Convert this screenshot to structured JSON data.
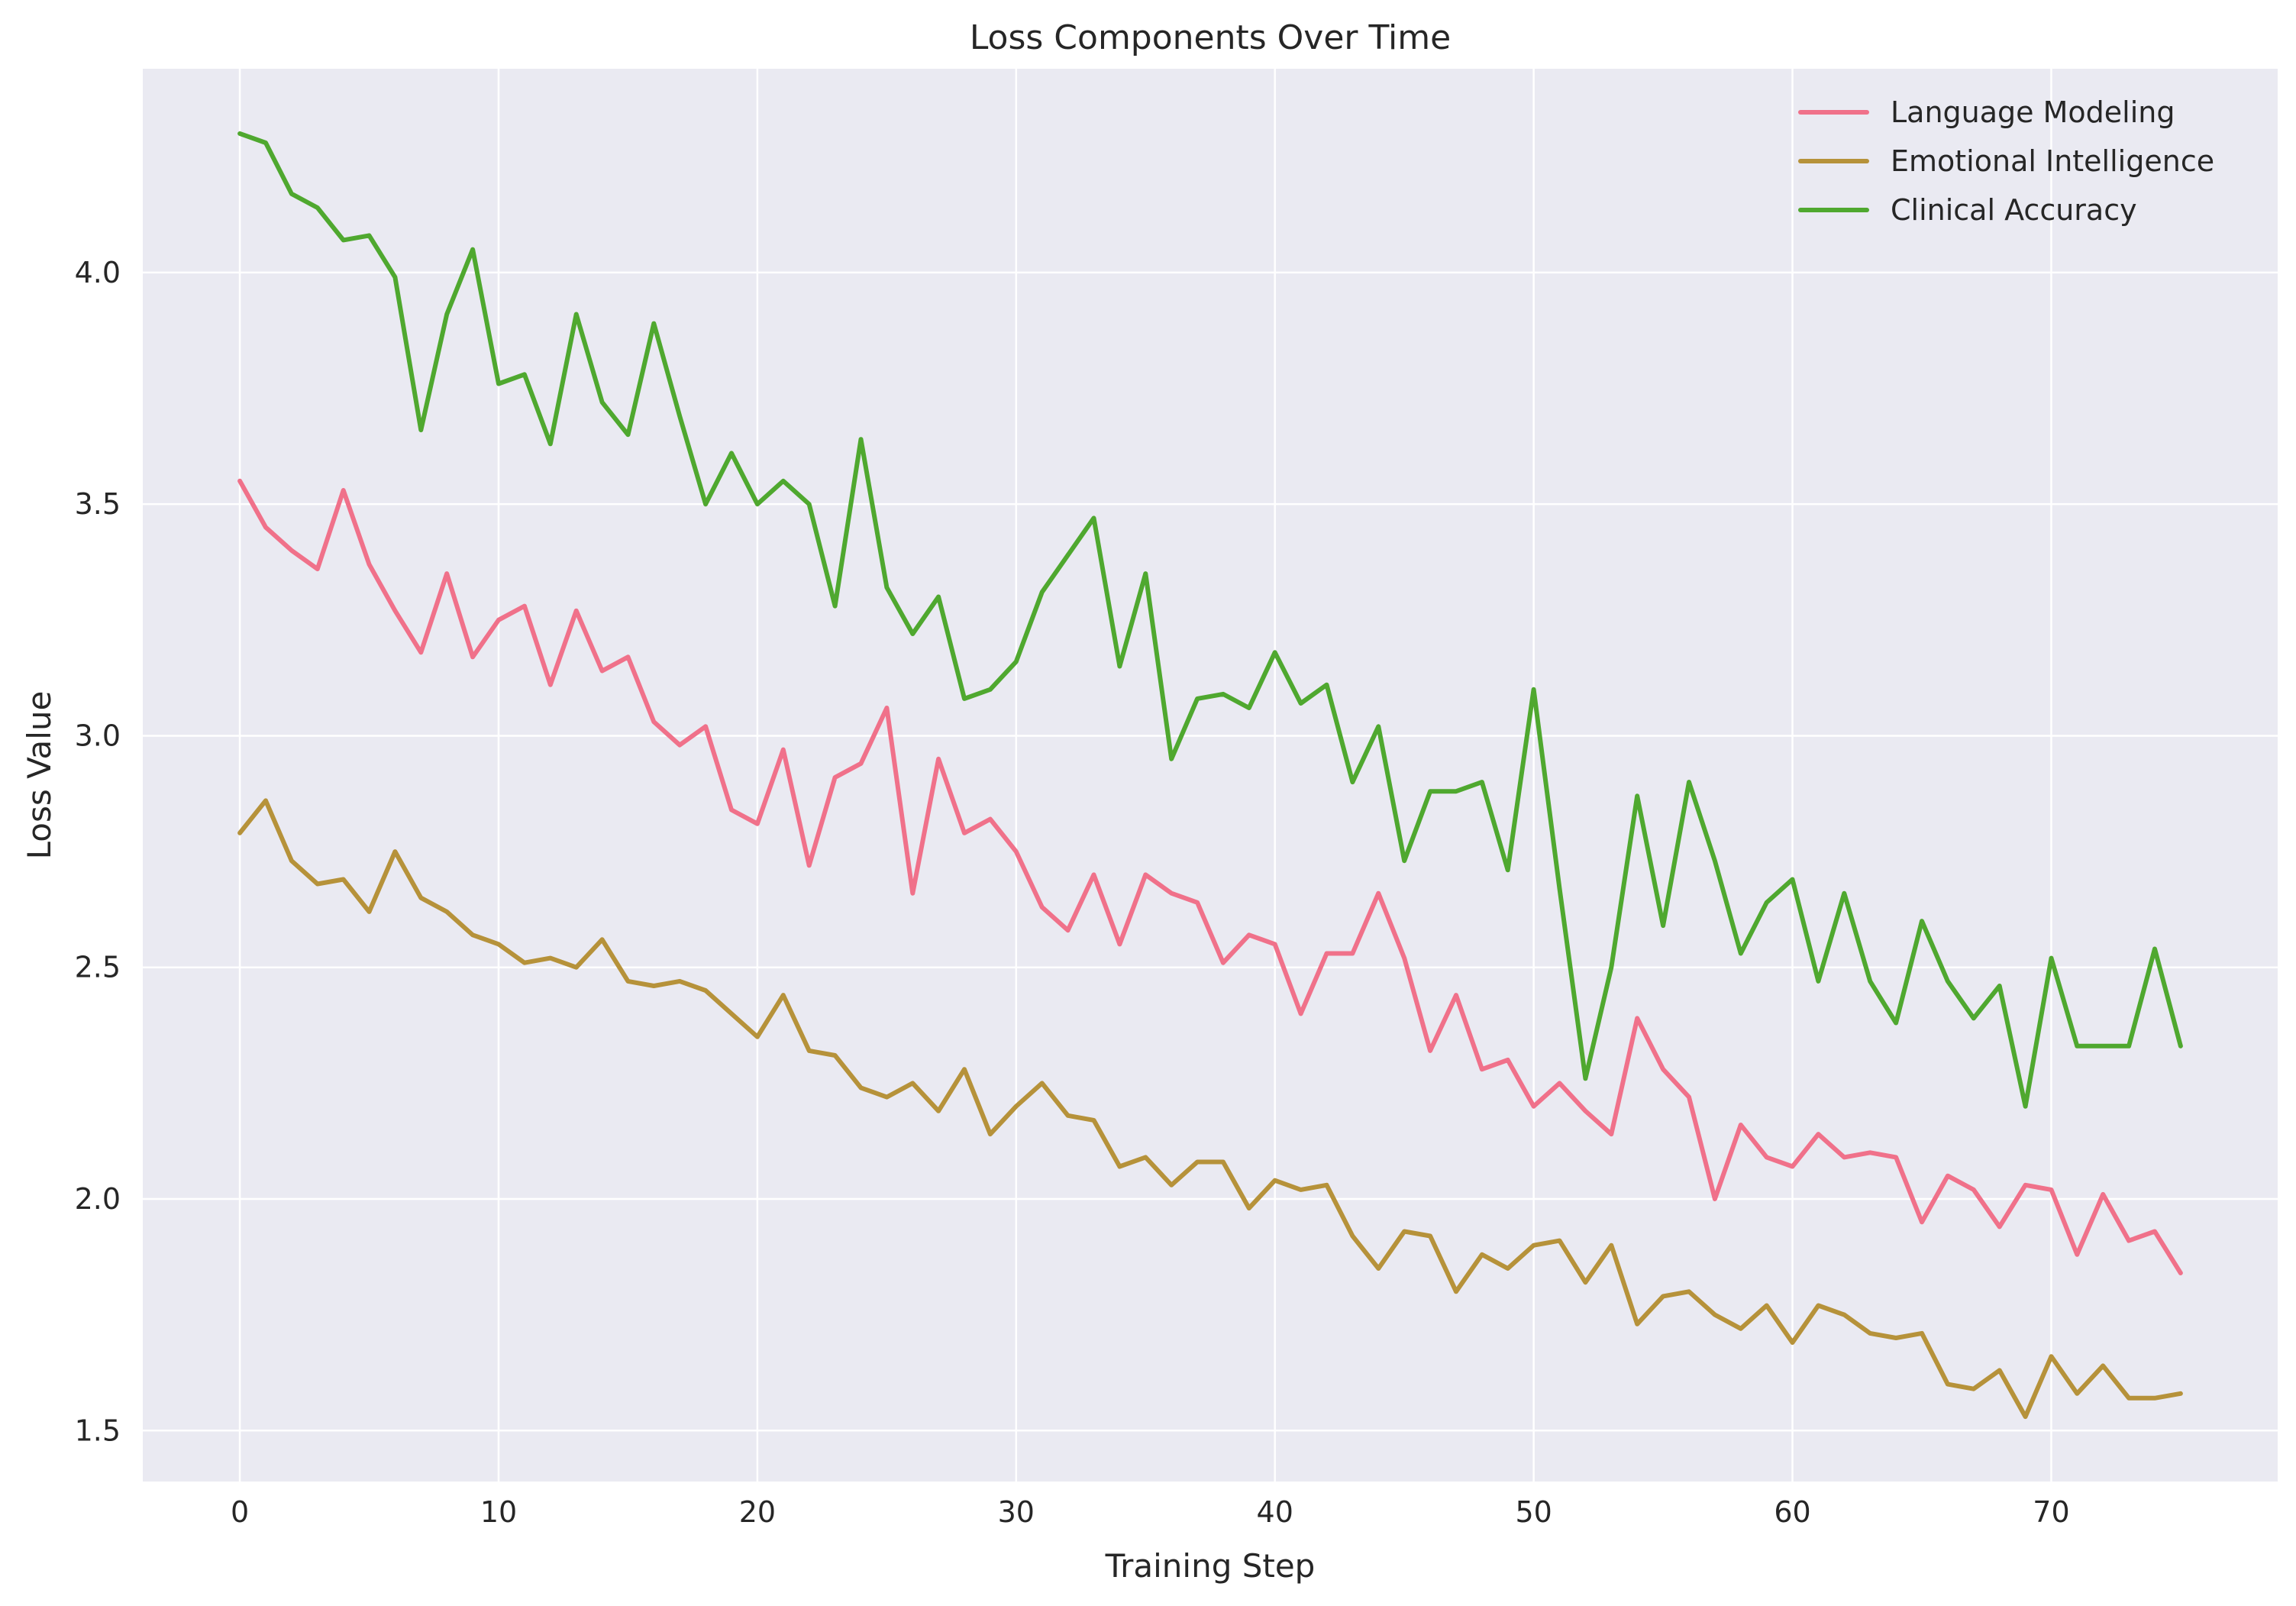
{
  "chart_data": {
    "type": "line",
    "title": "Loss Components Over Time",
    "xlabel": "Training Step",
    "ylabel": "Loss Value",
    "xlim": [
      -3.75,
      78.75
    ],
    "ylim": [
      1.39,
      4.44
    ],
    "xticks": [
      0,
      10,
      20,
      30,
      40,
      50,
      60,
      70
    ],
    "yticks": [
      1.5,
      2.0,
      2.5,
      3.0,
      3.5,
      4.0
    ],
    "x_tick_labels": [
      "0",
      "10",
      "20",
      "30",
      "40",
      "50",
      "60",
      "70"
    ],
    "y_tick_labels": [
      "1.5",
      "2.0",
      "2.5",
      "3.0",
      "3.5",
      "4.0"
    ],
    "grid": true,
    "legend_position": "top-right",
    "x": [
      0,
      1,
      2,
      3,
      4,
      5,
      6,
      7,
      8,
      9,
      10,
      11,
      12,
      13,
      14,
      15,
      16,
      17,
      18,
      19,
      20,
      21,
      22,
      23,
      24,
      25,
      26,
      27,
      28,
      29,
      30,
      31,
      32,
      33,
      34,
      35,
      36,
      37,
      38,
      39,
      40,
      41,
      42,
      43,
      44,
      45,
      46,
      47,
      48,
      49,
      50,
      51,
      52,
      53,
      54,
      55,
      56,
      57,
      58,
      59,
      60,
      61,
      62,
      63,
      64,
      65,
      66,
      67,
      68,
      69,
      70,
      71,
      72,
      73,
      74,
      75
    ],
    "series": [
      {
        "name": "Language Modeling",
        "color": "#f0718a",
        "values": [
          3.55,
          3.45,
          3.4,
          3.36,
          3.53,
          3.37,
          3.27,
          3.18,
          3.35,
          3.17,
          3.25,
          3.28,
          3.11,
          3.27,
          3.14,
          3.17,
          3.03,
          2.98,
          3.02,
          2.84,
          2.81,
          2.97,
          2.72,
          2.91,
          2.94,
          3.06,
          2.66,
          2.95,
          2.79,
          2.82,
          2.75,
          2.63,
          2.58,
          2.7,
          2.55,
          2.7,
          2.66,
          2.64,
          2.51,
          2.57,
          2.55,
          2.4,
          2.53,
          2.53,
          2.66,
          2.52,
          2.32,
          2.44,
          2.28,
          2.3,
          2.2,
          2.25,
          2.19,
          2.14,
          2.39,
          2.28,
          2.22,
          2.0,
          2.16,
          2.09,
          2.07,
          2.14,
          2.09,
          2.1,
          2.09,
          1.95,
          2.05,
          2.02,
          1.94,
          2.03,
          2.02,
          1.88,
          2.01,
          1.91,
          1.93,
          1.84
        ]
      },
      {
        "name": "Emotional Intelligence",
        "color": "#b6923a",
        "values": [
          2.79,
          2.86,
          2.73,
          2.68,
          2.69,
          2.62,
          2.75,
          2.65,
          2.62,
          2.57,
          2.55,
          2.51,
          2.52,
          2.5,
          2.56,
          2.47,
          2.46,
          2.47,
          2.45,
          2.4,
          2.35,
          2.44,
          2.32,
          2.31,
          2.24,
          2.22,
          2.25,
          2.19,
          2.28,
          2.14,
          2.2,
          2.25,
          2.18,
          2.17,
          2.07,
          2.09,
          2.03,
          2.08,
          2.08,
          1.98,
          2.04,
          2.02,
          2.03,
          1.92,
          1.85,
          1.93,
          1.92,
          1.8,
          1.88,
          1.85,
          1.9,
          1.91,
          1.82,
          1.9,
          1.73,
          1.79,
          1.8,
          1.75,
          1.72,
          1.77,
          1.69,
          1.77,
          1.75,
          1.71,
          1.7,
          1.71,
          1.6,
          1.59,
          1.63,
          1.53,
          1.66,
          1.58,
          1.64,
          1.57,
          1.57,
          1.58
        ]
      },
      {
        "name": "Clinical Accuracy",
        "color": "#4fa82f",
        "values": [
          4.3,
          4.28,
          4.17,
          4.14,
          4.07,
          4.08,
          3.99,
          3.66,
          3.91,
          4.05,
          3.76,
          3.78,
          3.63,
          3.91,
          3.72,
          3.65,
          3.89,
          3.69,
          3.5,
          3.61,
          3.5,
          3.55,
          3.5,
          3.28,
          3.64,
          3.32,
          3.22,
          3.3,
          3.08,
          3.1,
          3.16,
          3.31,
          3.39,
          3.47,
          3.15,
          3.35,
          2.95,
          3.08,
          3.09,
          3.06,
          3.18,
          3.07,
          3.11,
          2.9,
          3.02,
          2.73,
          2.88,
          2.88,
          2.9,
          2.71,
          3.1,
          2.67,
          2.26,
          2.5,
          2.87,
          2.59,
          2.9,
          2.73,
          2.53,
          2.64,
          2.69,
          2.47,
          2.66,
          2.47,
          2.38,
          2.6,
          2.47,
          2.39,
          2.46,
          2.2,
          2.52,
          2.33,
          2.33,
          2.33,
          2.54,
          2.33
        ]
      }
    ]
  }
}
